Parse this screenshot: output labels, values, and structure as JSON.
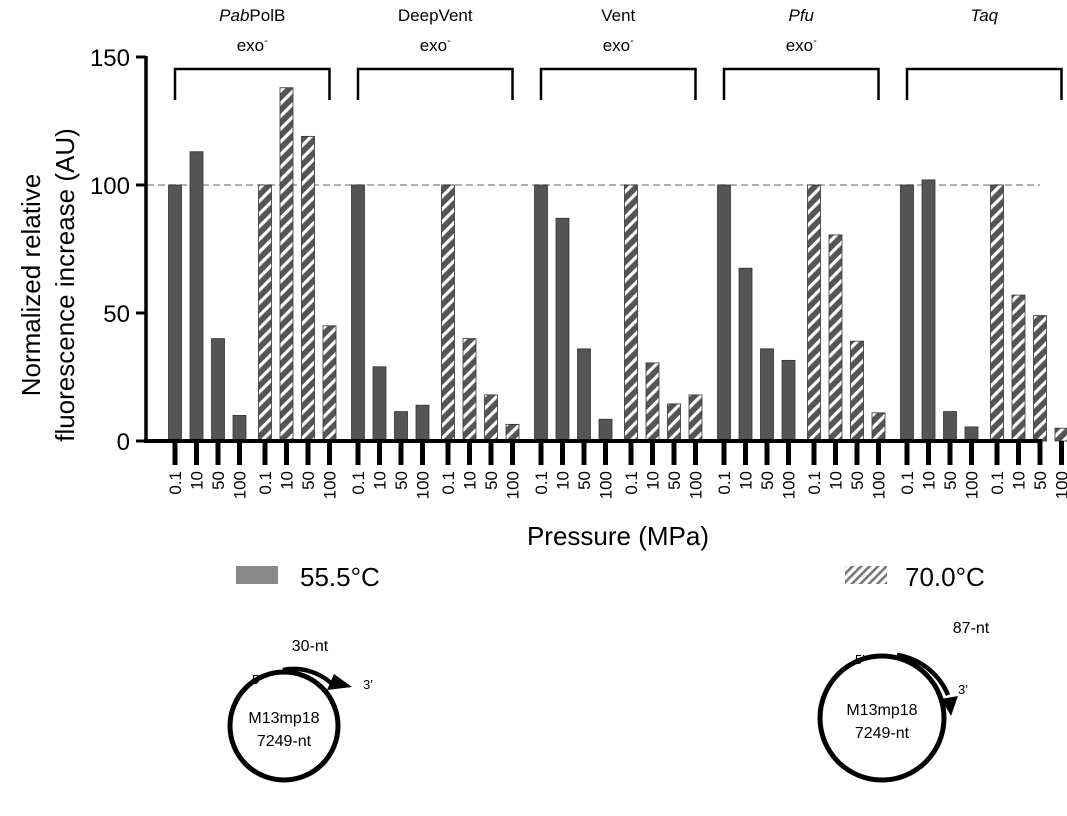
{
  "chart_data": {
    "type": "bar",
    "title": "",
    "ylabel_line1": "Normalized relative",
    "ylabel_line2": "fluorescence increase (AU)",
    "xlabel": "Pressure (MPa)",
    "ylim": [
      0,
      150
    ],
    "yticks": [
      "0",
      "50",
      "100",
      "150"
    ],
    "reference_line": 100,
    "pressure_ticks": [
      "0.1",
      "10",
      "50",
      "100"
    ],
    "groups": [
      {
        "name_italic": "Pab",
        "name_rest": "PolB",
        "suffix": "exo",
        "sup": "-",
        "series": [
          {
            "temperature": "55.5°C",
            "values": [
              100,
              113,
              40,
              10
            ]
          },
          {
            "temperature": "70.0°C",
            "values": [
              100,
              138,
              119,
              45
            ]
          }
        ]
      },
      {
        "name_italic": "",
        "name_rest": "DeepVent",
        "suffix": "exo",
        "sup": "-",
        "series": [
          {
            "temperature": "55.5°C",
            "values": [
              100,
              29,
              11.5,
              14
            ]
          },
          {
            "temperature": "70.0°C",
            "values": [
              100,
              40,
              18,
              6.5
            ]
          }
        ]
      },
      {
        "name_italic": "",
        "name_rest": "Vent",
        "suffix": "exo",
        "sup": "-",
        "series": [
          {
            "temperature": "55.5°C",
            "values": [
              100,
              87,
              36,
              8.5
            ]
          },
          {
            "temperature": "70.0°C",
            "values": [
              100,
              30.5,
              14.5,
              18
            ]
          }
        ]
      },
      {
        "name_italic": "Pfu",
        "name_rest": "",
        "suffix": "exo",
        "sup": "-",
        "series": [
          {
            "temperature": "55.5°C",
            "values": [
              100,
              67.5,
              36,
              31.5
            ]
          },
          {
            "temperature": "70.0°C",
            "values": [
              100,
              80.5,
              39,
              11
            ]
          }
        ]
      },
      {
        "name_italic": "Taq",
        "name_rest": "",
        "suffix": "",
        "sup": "",
        "series": [
          {
            "temperature": "55.5°C",
            "values": [
              100,
              102,
              11.5,
              5.5
            ]
          },
          {
            "temperature": "70.0°C",
            "values": [
              100,
              57,
              49,
              5
            ]
          }
        ]
      }
    ],
    "legend": [
      {
        "label": "55.5°C",
        "pattern": "solid"
      },
      {
        "label": "70.0°C",
        "pattern": "hatched"
      }
    ],
    "bar_color": "#555555"
  },
  "diagrams": [
    {
      "primer": "30-nt",
      "five_prime": "5’",
      "three_prime": "3’",
      "template_name": "M13mp18",
      "template_length": "7249-nt"
    },
    {
      "primer": "87-nt",
      "five_prime": "5’",
      "three_prime": "3’",
      "template_name": "M13mp18",
      "template_length": "7249-nt"
    }
  ]
}
